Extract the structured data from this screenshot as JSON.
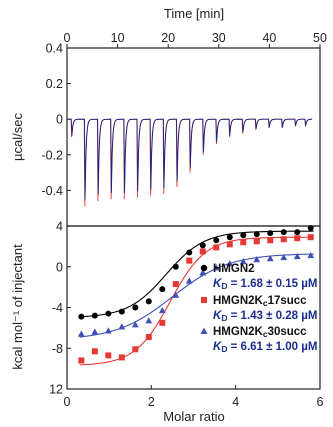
{
  "chart_data": [
    {
      "type": "line",
      "xlabel": "Time [min]",
      "ylabel": "µcal/sec",
      "xlim": [
        0,
        50
      ],
      "ylim": [
        -0.6,
        0.4
      ],
      "x_ticks": [
        "0",
        "10",
        "20",
        "30",
        "40",
        "50"
      ],
      "y_ticks": [
        "0.4",
        "0.2",
        "0",
        "-0.2",
        "-0.4"
      ],
      "injection_times_min": [
        0.8,
        3.4,
        6.0,
        8.6,
        11.2,
        13.8,
        16.4,
        19.0,
        21.6,
        24.2,
        26.8,
        29.4,
        32.0,
        34.6,
        37.2,
        39.8,
        42.4,
        45.0,
        47.0
      ],
      "injection_peaks_ucal_per_sec": [
        -0.1,
        -0.49,
        -0.46,
        -0.45,
        -0.45,
        -0.44,
        -0.43,
        -0.42,
        -0.38,
        -0.3,
        -0.2,
        -0.14,
        -0.1,
        -0.08,
        -0.06,
        -0.05,
        -0.05,
        -0.04,
        -0.04
      ],
      "series_colors": [
        "#1a237e",
        "#e53935"
      ]
    },
    {
      "type": "scatter",
      "xlabel": "Molar ratio",
      "ylabel": "kcal mol⁻¹ of injectant",
      "xlim": [
        0,
        6
      ],
      "ylim": [
        12,
        4
      ],
      "x_ticks": [
        "0",
        "2",
        "4",
        "6"
      ],
      "y_ticks": [
        "4",
        "0",
        "-4",
        "-8",
        "12"
      ],
      "series": [
        {
          "name": "HMGN2",
          "kd_prefix": "K",
          "kd_sub": "D",
          "kd_text": " = 1.68 ± 0.15 µM",
          "color": "#000000",
          "marker": "circle",
          "x": [
            0.34,
            0.66,
            0.98,
            1.3,
            1.62,
            1.94,
            2.26,
            2.58,
            2.9,
            3.22,
            3.54,
            3.86,
            4.18,
            4.5,
            4.82,
            5.14,
            5.46,
            5.78
          ],
          "y": [
            -4.9,
            -4.8,
            -4.6,
            -4.4,
            -4.0,
            -3.4,
            -2.2,
            0.0,
            1.4,
            2.1,
            2.6,
            2.9,
            3.1,
            3.2,
            3.3,
            3.4,
            3.4,
            3.8
          ],
          "fit": {
            "low": -5.0,
            "high": 3.5,
            "mid": 2.35,
            "k": 2.2
          }
        },
        {
          "name": "HMGN2K",
          "name_sub": "c",
          "name_suffix": "17succ",
          "kd_prefix": "K",
          "kd_sub": "D",
          "kd_text": " = 1.43 ± 0.28 µM",
          "color": "#e53935",
          "marker": "square",
          "x": [
            0.34,
            0.66,
            0.98,
            1.3,
            1.62,
            1.94,
            2.26,
            2.58,
            2.9,
            3.22,
            3.54,
            3.86,
            4.18,
            4.5,
            4.82,
            5.14,
            5.46,
            5.78
          ],
          "y": [
            -9.2,
            -8.3,
            -8.7,
            -8.9,
            -8.1,
            -6.9,
            -5.5,
            -1.7,
            0.6,
            1.5,
            1.9,
            2.2,
            2.4,
            2.5,
            2.6,
            2.7,
            2.8,
            2.9
          ],
          "fit": {
            "low": -9.7,
            "high": 2.9,
            "mid": 2.45,
            "k": 2.4
          }
        },
        {
          "name": "HMGN2K",
          "name_sub": "c",
          "name_suffix": "30succ",
          "kd_prefix": "K",
          "kd_sub": "D",
          "kd_text": " = 6.61 ± 1.00 µM",
          "color": "#3f51b5",
          "marker": "triangle",
          "x": [
            0.34,
            0.66,
            0.98,
            1.3,
            1.62,
            1.94,
            2.26,
            2.58,
            2.9,
            3.22,
            3.54,
            3.86,
            4.18,
            4.5,
            4.82,
            5.14,
            5.46,
            5.78
          ],
          "y": [
            -6.6,
            -6.4,
            -6.3,
            -5.9,
            -5.7,
            -5.3,
            -4.3,
            -2.8,
            -1.4,
            -0.6,
            -0.1,
            0.3,
            0.5,
            0.7,
            0.8,
            0.9,
            1.0,
            1.1
          ],
          "fit": {
            "low": -7.2,
            "high": 1.3,
            "mid": 2.5,
            "k": 1.5
          }
        }
      ]
    }
  ]
}
